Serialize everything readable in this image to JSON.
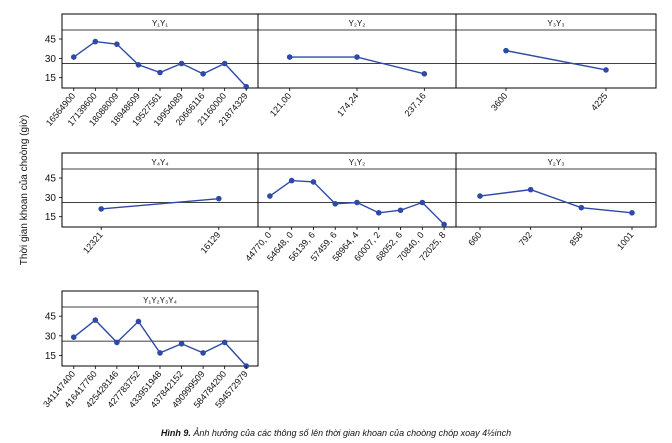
{
  "figure": {
    "ylabel": "Thời gian khoan của choòng (giờ)",
    "caption_bold": "Hình 9.",
    "caption_text": " Ảnh hưởng của các thông số lên thời gian khoan của choòng chóp xoay 4½inch"
  },
  "chart_data": [
    {
      "type": "line",
      "title": "Y₁Y₁",
      "categories": [
        "16564900",
        "17139600",
        "18088009",
        "18948609",
        "19527561",
        "19954089",
        "20666116",
        "21160000",
        "21874329"
      ],
      "values": [
        31,
        43,
        41,
        25,
        19,
        26,
        18,
        26,
        8
      ],
      "ylim": [
        7,
        52
      ],
      "yticks": [
        15,
        30,
        45
      ],
      "reference_line": 26
    },
    {
      "type": "line",
      "title": "Y₂Y₂",
      "categories": [
        "121,00",
        "174,24",
        "237,16"
      ],
      "values": [
        31,
        31,
        18
      ],
      "ylim": [
        7,
        52
      ],
      "yticks": [
        15,
        30,
        45
      ],
      "reference_line": 26
    },
    {
      "type": "line",
      "title": "Y₃Y₃",
      "categories": [
        "3600",
        "4225"
      ],
      "values": [
        36,
        21
      ],
      "ylim": [
        7,
        52
      ],
      "yticks": [
        15,
        30,
        45
      ],
      "reference_line": 26
    },
    {
      "type": "line",
      "title": "Y₄Y₄",
      "categories": [
        "12321",
        "16129"
      ],
      "values": [
        21,
        29
      ],
      "ylim": [
        7,
        52
      ],
      "yticks": [
        15,
        30,
        45
      ],
      "reference_line": 26
    },
    {
      "type": "line",
      "title": "Y₁Y₂",
      "categories": [
        "44770, 0",
        "54648, 0",
        "56139, 6",
        "57459, 6",
        "58964, 4",
        "60007, 2",
        "68052, 6",
        "70840, 0",
        "72025, 8"
      ],
      "values": [
        31,
        43,
        42,
        25,
        26,
        18,
        20,
        26,
        9
      ],
      "ylim": [
        7,
        52
      ],
      "yticks": [
        15,
        30,
        45
      ],
      "reference_line": 26
    },
    {
      "type": "line",
      "title": "Y₂Y₃",
      "categories": [
        "660",
        "792",
        "858",
        "1001"
      ],
      "values": [
        31,
        36,
        22,
        18
      ],
      "ylim": [
        7,
        52
      ],
      "yticks": [
        15,
        30,
        45
      ],
      "reference_line": 26
    },
    {
      "type": "line",
      "title": "Y₁Y₂Y₃Y₄",
      "categories": [
        "341147400",
        "416417760",
        "425428146",
        "427783752",
        "433951948",
        "437842152",
        "490999509",
        "584784200",
        "594572979"
      ],
      "values": [
        29,
        42,
        25,
        41,
        17,
        24,
        17,
        25,
        7
      ],
      "ylim": [
        7,
        52
      ],
      "yticks": [
        15,
        30,
        45
      ],
      "reference_line": 26
    }
  ]
}
